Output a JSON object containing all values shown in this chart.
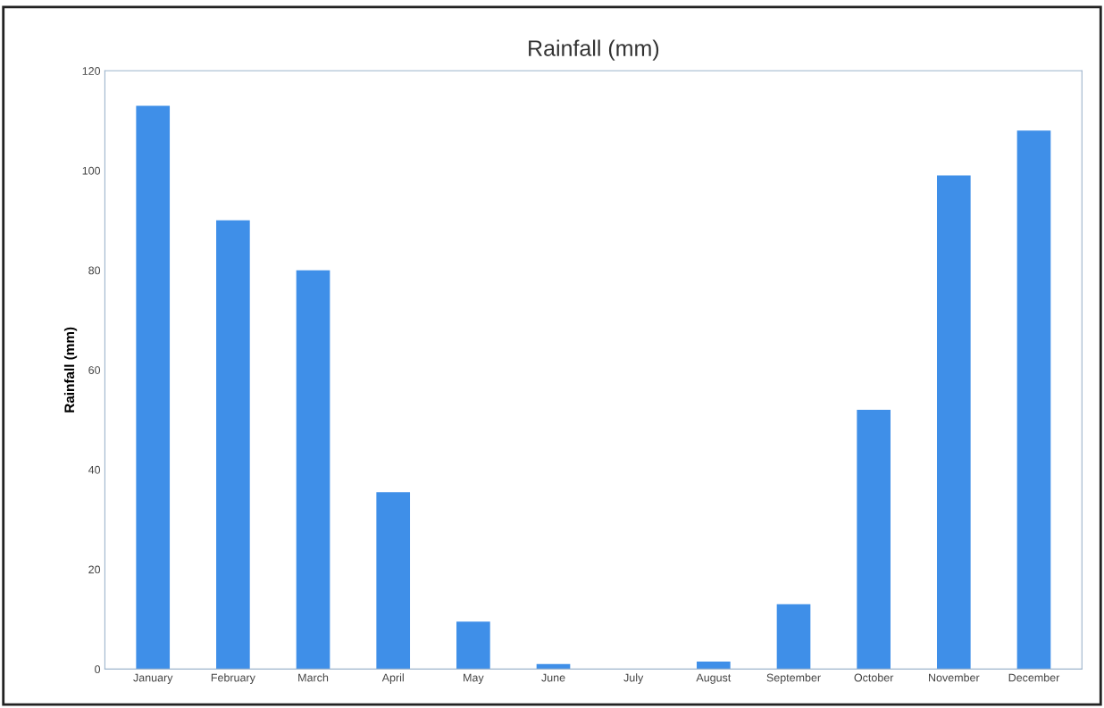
{
  "chart_data": {
    "type": "bar",
    "title": "Rainfall (mm)",
    "ylabel": "Rainfall (mm)",
    "categories": [
      "January",
      "February",
      "March",
      "April",
      "May",
      "June",
      "July",
      "August",
      "September",
      "October",
      "November",
      "December"
    ],
    "values": [
      113,
      90,
      80,
      35.5,
      9.5,
      1,
      0,
      1.5,
      13,
      52,
      99,
      108
    ],
    "color": "#3f8fe8",
    "ylim": [
      0,
      120
    ],
    "yticks": [
      0,
      20,
      40,
      60,
      80,
      100,
      120
    ],
    "grid": false,
    "legend": false
  }
}
